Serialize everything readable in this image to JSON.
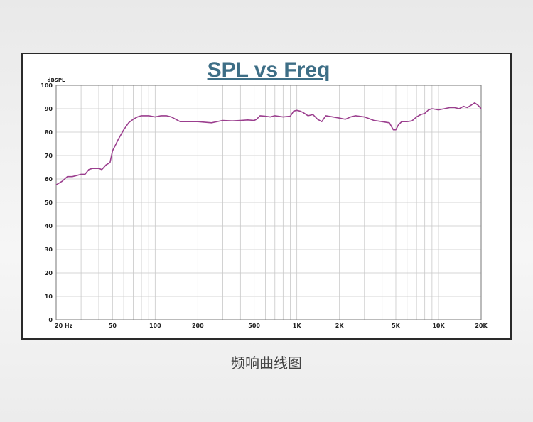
{
  "caption": "频响曲线图",
  "chart_data": {
    "type": "line",
    "title": "SPL vs Freq",
    "ylabel": "dBSPL",
    "xscale": "log",
    "xlim": [
      20,
      20000
    ],
    "ylim": [
      0,
      100
    ],
    "grid": true,
    "line_color": "#9b3e8e",
    "title_color": "#3d6e86",
    "yticks": [
      0,
      10,
      20,
      30,
      40,
      50,
      60,
      70,
      80,
      90,
      100
    ],
    "xticks": [
      {
        "value": 20,
        "label": "20  Hz"
      },
      {
        "value": 50,
        "label": "50"
      },
      {
        "value": 100,
        "label": "100"
      },
      {
        "value": 200,
        "label": "200"
      },
      {
        "value": 500,
        "label": "500"
      },
      {
        "value": 1000,
        "label": "1K"
      },
      {
        "value": 2000,
        "label": "2K"
      },
      {
        "value": 5000,
        "label": "5K"
      },
      {
        "value": 10000,
        "label": "10K"
      },
      {
        "value": 20000,
        "label": "20K"
      }
    ],
    "series": [
      {
        "x": [
          20,
          22,
          24,
          26,
          28,
          30,
          32,
          34,
          36,
          38,
          40,
          42,
          45,
          48,
          50,
          52,
          55,
          60,
          65,
          70,
          75,
          80,
          90,
          100,
          110,
          120,
          130,
          150,
          160,
          180,
          200,
          250,
          300,
          350,
          400,
          450,
          500,
          520,
          550,
          600,
          650,
          700,
          800,
          900,
          950,
          1000,
          1050,
          1100,
          1200,
          1300,
          1400,
          1500,
          1600,
          1800,
          2000,
          2200,
          2400,
          2600,
          3000,
          3500,
          4000,
          4500,
          4800,
          5000,
          5200,
          5500,
          6000,
          6500,
          7000,
          7500,
          8000,
          8500,
          9000,
          10000,
          11000,
          12000,
          13000,
          14000,
          15000,
          16000,
          17000,
          18000,
          19000,
          20000
        ],
        "y": [
          57.5,
          59,
          61,
          61,
          61.5,
          62,
          62,
          64,
          64.5,
          64.5,
          64.5,
          64,
          66,
          67,
          72,
          74,
          77,
          81,
          84,
          85.5,
          86.5,
          87,
          87,
          86.5,
          87,
          87,
          86.5,
          84.5,
          84.5,
          84.5,
          84.5,
          84,
          85,
          84.8,
          85,
          85.2,
          85,
          85.5,
          87,
          86.8,
          86.5,
          87,
          86.5,
          86.8,
          89,
          89.3,
          89,
          88.5,
          87,
          87.5,
          85.5,
          84.5,
          87,
          86.5,
          86,
          85.5,
          86.5,
          87,
          86.5,
          85,
          84.5,
          84,
          81,
          81,
          83,
          84.5,
          84.5,
          84.8,
          86.5,
          87.5,
          88,
          89.5,
          90,
          89.5,
          90,
          90.5,
          90.5,
          90,
          91,
          90.5,
          91.5,
          92.5,
          91.5,
          90
        ]
      }
    ]
  }
}
